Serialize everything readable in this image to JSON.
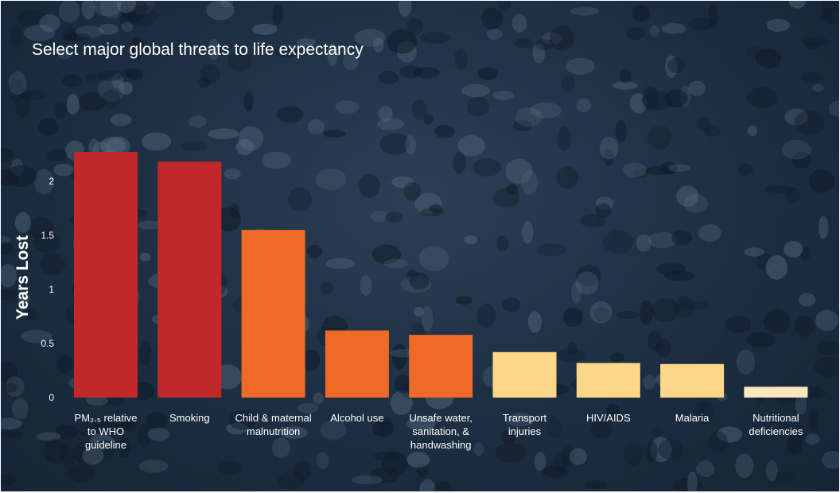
{
  "chart_data": {
    "type": "bar",
    "title": "Select major global threats to life expectancy",
    "xlabel": "",
    "ylabel": "Years Lost",
    "ylim": [
      0,
      2.3
    ],
    "yticks": [
      "0",
      "0.5",
      "1",
      "1.5",
      "2"
    ],
    "grid": false,
    "categories": [
      "PM2.5 relative to WHO guideline",
      "Smoking",
      "Child & maternal malnutrition",
      "Alcohol use",
      "Unsafe water, sanitation, & handwashing",
      "Transport injuries",
      "HIV/AIDS",
      "Malaria",
      "Nutritional deficiencies"
    ],
    "category_labels": [
      [
        "PM₂.₅ relative",
        "to WHO",
        "guideline"
      ],
      [
        "Smoking"
      ],
      [
        "Child & maternal",
        "malnutrition"
      ],
      [
        "Alcohol use"
      ],
      [
        "Unsafe water,",
        "sanitation, &",
        "handwashing"
      ],
      [
        "Transport",
        "injuries"
      ],
      [
        "HIV/AIDS"
      ],
      [
        "Malaria"
      ],
      [
        "Nutritional",
        "deficiencies"
      ]
    ],
    "values": [
      2.27,
      2.18,
      1.55,
      0.62,
      0.58,
      0.42,
      0.32,
      0.31,
      0.1
    ],
    "colors": [
      "#c1282a",
      "#c1282a",
      "#ee6a26",
      "#ee6a26",
      "#ee6a26",
      "#fbd787",
      "#fbd787",
      "#fbd787",
      "#fce6bb"
    ]
  }
}
